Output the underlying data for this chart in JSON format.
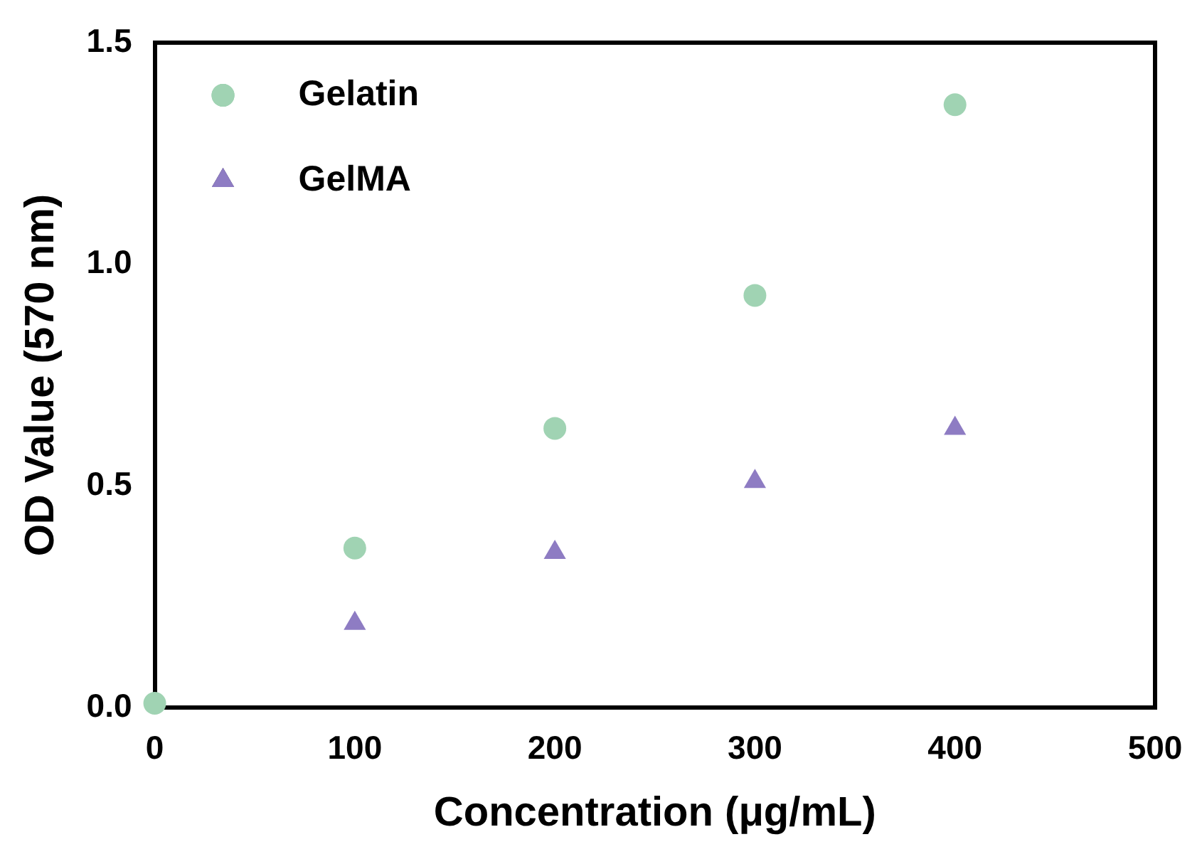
{
  "chart_data": {
    "type": "scatter",
    "xlabel": "Concentration (μg/mL)",
    "ylabel": "OD Value (570 nm)",
    "xlim": [
      0,
      500
    ],
    "xticks": [
      0,
      100,
      200,
      300,
      400,
      500
    ],
    "ylim": [
      0,
      1.5
    ],
    "yticks": [
      {
        "value": 0,
        "label": "0.0"
      },
      0.5,
      {
        "value": 1,
        "label": "1.0"
      },
      1.5
    ],
    "grid": false,
    "legend": "top left",
    "series": [
      {
        "name": "Gelatin",
        "color": "#a0d3b3",
        "marker": "circle",
        "x": [
          0,
          100,
          200,
          300,
          400
        ],
        "values": [
          0.01,
          0.36,
          0.63,
          0.93,
          1.36
        ]
      },
      {
        "name": "GelMA",
        "color": "#8e7cc3",
        "marker": "triangle",
        "x": [
          100,
          200,
          300,
          400
        ],
        "values": [
          0.19,
          0.35,
          0.51,
          0.63
        ]
      }
    ]
  }
}
